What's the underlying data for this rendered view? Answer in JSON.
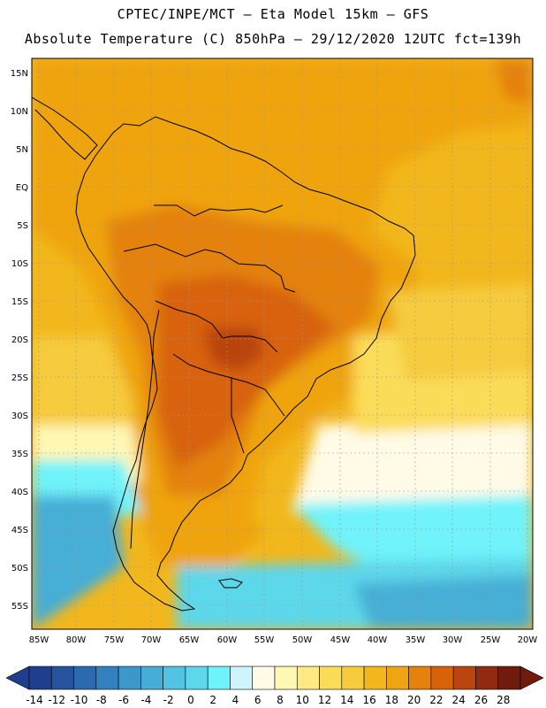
{
  "title_line1": "CPTEC/INPE/MCT –  Eta Model 15km – GFS",
  "title_line2": "Absolute Temperature (C) 850hPa – 29/12/2020 12UTC fct=139h",
  "lat_labels": [
    "15N",
    "10N",
    "5N",
    "EQ",
    "5S",
    "10S",
    "15S",
    "20S",
    "25S",
    "30S",
    "35S",
    "40S",
    "45S",
    "50S",
    "55S"
  ],
  "lon_labels": [
    "85W",
    "80W",
    "75W",
    "70W",
    "65W",
    "60W",
    "55W",
    "50W",
    "45W",
    "40W",
    "35W",
    "30W",
    "25W",
    "20W"
  ],
  "colorbar": {
    "labels": [
      "-14",
      "-12",
      "-10",
      "-8",
      "-6",
      "-4",
      "-2",
      "0",
      "2",
      "4",
      "6",
      "8",
      "10",
      "12",
      "14",
      "16",
      "18",
      "20",
      "22",
      "24",
      "26",
      "28"
    ],
    "colors": [
      "#1f3f8c",
      "#25539e",
      "#2c6ab0",
      "#3382bf",
      "#3b98c9",
      "#46aed6",
      "#52c3e2",
      "#5dd7ea",
      "#6ff3fb",
      "#cdf5fb",
      "#fffbe7",
      "#fff7b4",
      "#ffeb82",
      "#fbdc58",
      "#f6cb3c",
      "#f2b71c",
      "#efa411",
      "#e4820d",
      "#d8620a",
      "#b94510",
      "#902a10",
      "#6f1b0e"
    ]
  }
}
